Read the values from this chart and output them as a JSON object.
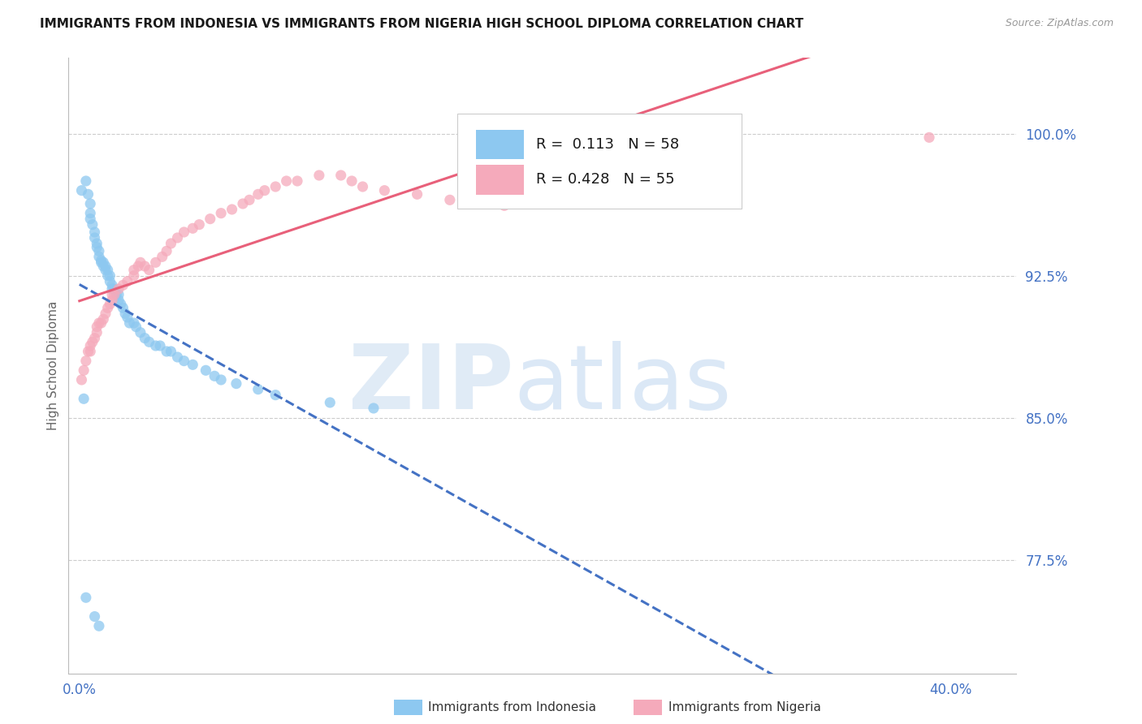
{
  "title": "IMMIGRANTS FROM INDONESIA VS IMMIGRANTS FROM NIGERIA HIGH SCHOOL DIPLOMA CORRELATION CHART",
  "source": "Source: ZipAtlas.com",
  "ylabel": "High School Diploma",
  "y_ticks": [
    0.775,
    0.85,
    0.925,
    1.0
  ],
  "y_tick_labels": [
    "77.5%",
    "85.0%",
    "92.5%",
    "100.0%"
  ],
  "x_ticks": [
    0.0,
    0.1,
    0.2,
    0.3,
    0.4
  ],
  "x_tick_labels": [
    "0.0%",
    "",
    "",
    "",
    "40.0%"
  ],
  "xlim": [
    -0.005,
    0.43
  ],
  "ylim": [
    0.715,
    1.04
  ],
  "color_indonesia": "#8DC8F0",
  "color_nigeria": "#F5AABB",
  "color_line_indonesia": "#4472C4",
  "color_line_nigeria": "#E8607A",
  "color_axis_labels": "#4472C4",
  "legend_text1": "R =  0.113   N = 58",
  "legend_text2": "R = 0.428   N = 55",
  "indonesia_x": [
    0.001,
    0.003,
    0.004,
    0.005,
    0.005,
    0.005,
    0.006,
    0.007,
    0.007,
    0.008,
    0.008,
    0.009,
    0.009,
    0.01,
    0.01,
    0.011,
    0.011,
    0.012,
    0.012,
    0.013,
    0.013,
    0.014,
    0.014,
    0.015,
    0.015,
    0.016,
    0.017,
    0.018,
    0.018,
    0.019,
    0.02,
    0.021,
    0.022,
    0.023,
    0.025,
    0.026,
    0.028,
    0.03,
    0.032,
    0.035,
    0.037,
    0.04,
    0.042,
    0.045,
    0.048,
    0.052,
    0.058,
    0.062,
    0.065,
    0.072,
    0.082,
    0.09,
    0.115,
    0.135,
    0.002,
    0.003,
    0.007,
    0.009
  ],
  "indonesia_y": [
    0.97,
    0.975,
    0.968,
    0.963,
    0.958,
    0.955,
    0.952,
    0.948,
    0.945,
    0.942,
    0.94,
    0.938,
    0.935,
    0.933,
    0.932,
    0.932,
    0.93,
    0.93,
    0.928,
    0.928,
    0.925,
    0.925,
    0.922,
    0.92,
    0.918,
    0.918,
    0.915,
    0.915,
    0.912,
    0.91,
    0.908,
    0.905,
    0.903,
    0.9,
    0.9,
    0.898,
    0.895,
    0.892,
    0.89,
    0.888,
    0.888,
    0.885,
    0.885,
    0.882,
    0.88,
    0.878,
    0.875,
    0.872,
    0.87,
    0.868,
    0.865,
    0.862,
    0.858,
    0.855,
    0.86,
    0.755,
    0.745,
    0.74
  ],
  "nigeria_x": [
    0.001,
    0.002,
    0.003,
    0.004,
    0.005,
    0.005,
    0.006,
    0.007,
    0.008,
    0.008,
    0.009,
    0.01,
    0.011,
    0.012,
    0.013,
    0.014,
    0.015,
    0.015,
    0.016,
    0.018,
    0.02,
    0.022,
    0.025,
    0.025,
    0.027,
    0.028,
    0.03,
    0.032,
    0.035,
    0.038,
    0.04,
    0.042,
    0.045,
    0.048,
    0.052,
    0.055,
    0.06,
    0.065,
    0.07,
    0.075,
    0.078,
    0.082,
    0.085,
    0.09,
    0.095,
    0.1,
    0.11,
    0.12,
    0.125,
    0.13,
    0.14,
    0.155,
    0.17,
    0.195,
    0.39
  ],
  "nigeria_y": [
    0.87,
    0.875,
    0.88,
    0.885,
    0.885,
    0.888,
    0.89,
    0.892,
    0.895,
    0.898,
    0.9,
    0.9,
    0.902,
    0.905,
    0.908,
    0.91,
    0.912,
    0.915,
    0.915,
    0.918,
    0.92,
    0.922,
    0.925,
    0.928,
    0.93,
    0.932,
    0.93,
    0.928,
    0.932,
    0.935,
    0.938,
    0.942,
    0.945,
    0.948,
    0.95,
    0.952,
    0.955,
    0.958,
    0.96,
    0.963,
    0.965,
    0.968,
    0.97,
    0.972,
    0.975,
    0.975,
    0.978,
    0.978,
    0.975,
    0.972,
    0.97,
    0.968,
    0.965,
    0.962,
    0.998
  ]
}
